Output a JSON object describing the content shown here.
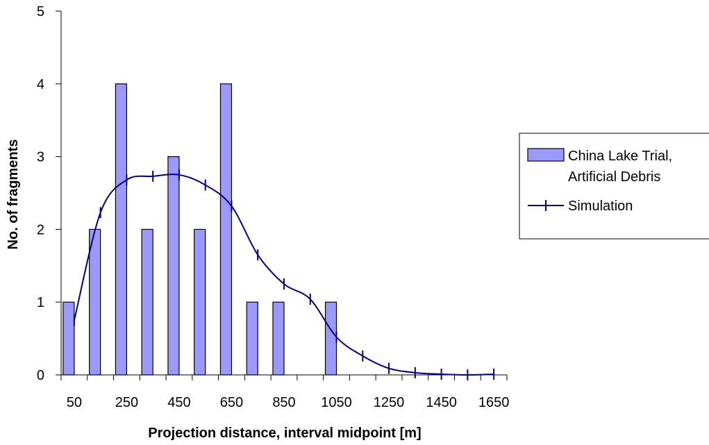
{
  "chart_data": {
    "type": "bar",
    "title": "",
    "xlabel": "Projection distance, interval midpoint [m]",
    "ylabel": "No. of fragments",
    "ylim": [
      0,
      5
    ],
    "yticks": [
      "0",
      "1",
      "2",
      "3",
      "4",
      "5"
    ],
    "categories": [
      "50",
      "150",
      "250",
      "350",
      "450",
      "550",
      "650",
      "750",
      "850",
      "950",
      "1050",
      "1150",
      "1250",
      "1350",
      "1450",
      "1550",
      "1650"
    ],
    "xtick_labels": [
      "50",
      "250",
      "450",
      "650",
      "850",
      "1050",
      "1250",
      "1450",
      "1650"
    ],
    "series": [
      {
        "name": "China Lake Trial, Artificial Debris",
        "kind": "bar",
        "color": "#9999ff",
        "values": [
          1,
          2,
          4,
          2,
          3,
          2,
          4,
          1,
          1,
          0,
          1,
          0,
          0,
          0,
          0,
          0,
          0
        ]
      },
      {
        "name": "Simulation",
        "kind": "line",
        "color": "#000080",
        "values": [
          0.75,
          2.23,
          2.68,
          2.73,
          2.75,
          2.61,
          2.32,
          1.65,
          1.25,
          1.04,
          0.52,
          0.26,
          0.09,
          0.03,
          0.01,
          0.0,
          0.01
        ]
      }
    ],
    "legend_lines": [
      [
        "China Lake Trial,",
        "Artificial Debris"
      ],
      [
        "Simulation"
      ]
    ],
    "legend": "right",
    "grid": false
  }
}
